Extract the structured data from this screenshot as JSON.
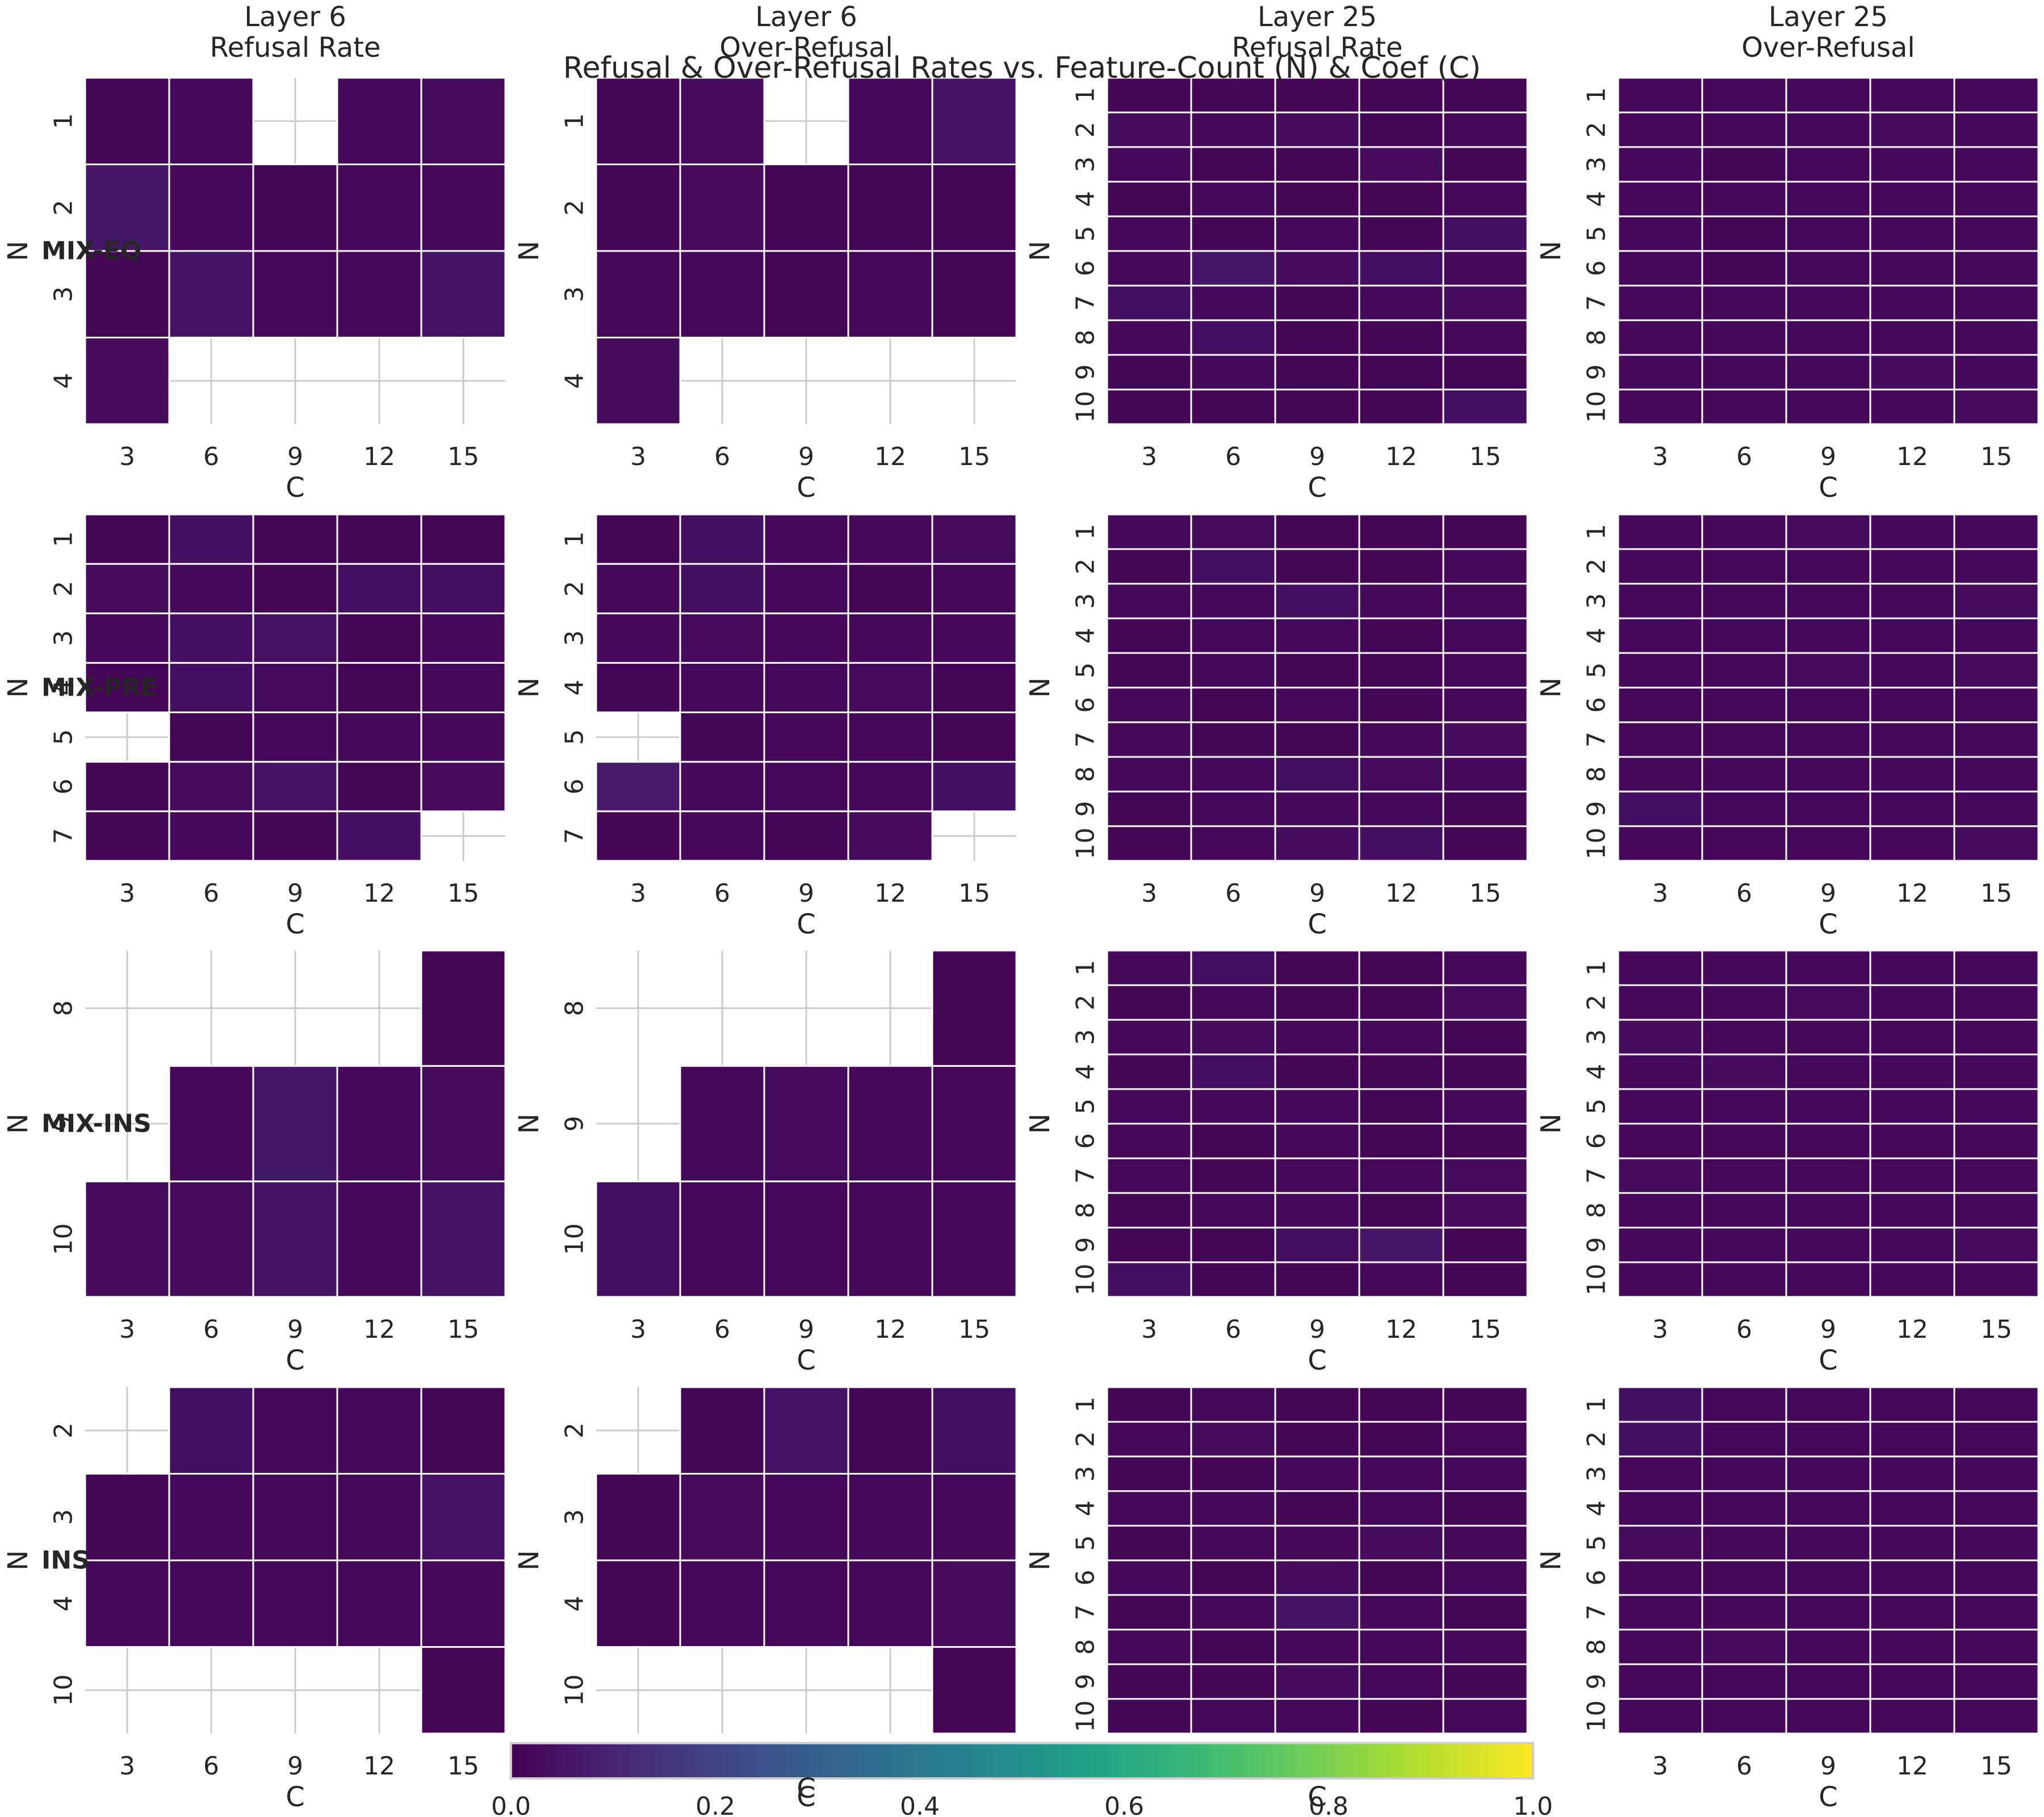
{
  "chart_data": {
    "type": "heatmap",
    "title": "Refusal & Over-Refusal Rates vs. Feature-Count (N) & Coef (C)",
    "column_titles": [
      [
        "Layer 6",
        "Refusal Rate"
      ],
      [
        "Layer 6",
        "Over-Refusal"
      ],
      [
        "Layer 25",
        "Refusal Rate"
      ],
      [
        "Layer 25",
        "Over-Refusal"
      ]
    ],
    "row_labels": [
      "MIX-EQ",
      "MIX-PRE",
      "MIX-INS",
      "INS"
    ],
    "xlabel": "C",
    "ylabel": "N",
    "x_categories": [
      "3",
      "6",
      "9",
      "12",
      "15"
    ],
    "colorbar": {
      "colormap": "viridis",
      "range": [
        0.0,
        1.0
      ],
      "ticks": [
        "0.0",
        "0.2",
        "0.4",
        "0.6",
        "0.8",
        "1.0"
      ],
      "label": "C"
    },
    "panels": [
      {
        "row": 0,
        "col": 0,
        "n": [
          "1",
          "2",
          "3",
          "4"
        ],
        "values": [
          [
            0.01,
            0.02,
            null,
            0.02,
            0.03
          ],
          [
            0.06,
            0.02,
            0.01,
            0.02,
            0.02
          ],
          [
            0.01,
            0.05,
            0.02,
            0.02,
            0.05
          ],
          [
            0.03,
            null,
            null,
            null,
            null
          ]
        ]
      },
      {
        "row": 0,
        "col": 1,
        "n": [
          "1",
          "2",
          "3",
          "4"
        ],
        "values": [
          [
            0.01,
            0.03,
            null,
            0.02,
            0.05
          ],
          [
            0.01,
            0.03,
            0.01,
            0.01,
            0.01
          ],
          [
            0.02,
            0.02,
            0.01,
            0.02,
            0.01
          ],
          [
            0.03,
            null,
            null,
            null,
            null
          ]
        ]
      },
      {
        "row": 0,
        "col": 2,
        "n": [
          "1",
          "2",
          "3",
          "4",
          "5",
          "6",
          "7",
          "8",
          "9",
          "10"
        ],
        "values": [
          [
            0.01,
            0.01,
            0.01,
            0.01,
            0.01
          ],
          [
            0.03,
            0.02,
            0.03,
            0.01,
            0.02
          ],
          [
            0.02,
            0.01,
            0.01,
            0.03,
            0.01
          ],
          [
            0.01,
            0.02,
            0.01,
            0.01,
            0.02
          ],
          [
            0.02,
            0.01,
            0.02,
            0.01,
            0.04
          ],
          [
            0.02,
            0.06,
            0.03,
            0.04,
            0.02
          ],
          [
            0.04,
            0.02,
            0.01,
            0.02,
            0.03
          ],
          [
            0.02,
            0.04,
            0.01,
            0.01,
            0.02
          ],
          [
            0.01,
            0.02,
            0.01,
            0.01,
            0.01
          ],
          [
            0.01,
            0.01,
            0.01,
            0.01,
            0.04
          ]
        ]
      },
      {
        "row": 0,
        "col": 3,
        "n": [
          "1",
          "2",
          "3",
          "4",
          "5",
          "6",
          "7",
          "8",
          "9",
          "10"
        ],
        "values": [
          [
            0.02,
            0.02,
            0.02,
            0.02,
            0.02
          ],
          [
            0.02,
            0.02,
            0.02,
            0.03,
            0.02
          ],
          [
            0.02,
            0.01,
            0.02,
            0.02,
            0.02
          ],
          [
            0.02,
            0.02,
            0.02,
            0.02,
            0.02
          ],
          [
            0.02,
            0.01,
            0.02,
            0.02,
            0.02
          ],
          [
            0.02,
            0.01,
            0.02,
            0.02,
            0.02
          ],
          [
            0.02,
            0.02,
            0.02,
            0.02,
            0.02
          ],
          [
            0.02,
            0.02,
            0.02,
            0.02,
            0.02
          ],
          [
            0.02,
            0.02,
            0.02,
            0.03,
            0.02
          ],
          [
            0.02,
            0.02,
            0.02,
            0.02,
            0.03
          ]
        ]
      },
      {
        "row": 1,
        "col": 0,
        "n": [
          "1",
          "2",
          "3",
          "4",
          "5",
          "6",
          "7"
        ],
        "values": [
          [
            0.01,
            0.04,
            0.01,
            0.01,
            0.01
          ],
          [
            0.03,
            0.02,
            0.01,
            0.04,
            0.04
          ],
          [
            0.02,
            0.04,
            0.05,
            0.01,
            0.02
          ],
          [
            0.01,
            0.04,
            0.03,
            0.01,
            0.02
          ],
          [
            null,
            0.01,
            0.02,
            0.02,
            0.02
          ],
          [
            0.01,
            0.03,
            0.05,
            0.01,
            0.03
          ],
          [
            0.01,
            0.02,
            0.01,
            0.04,
            null
          ]
        ]
      },
      {
        "row": 1,
        "col": 1,
        "n": [
          "1",
          "2",
          "3",
          "4",
          "5",
          "6",
          "7"
        ],
        "values": [
          [
            0.01,
            0.04,
            0.02,
            0.02,
            0.03
          ],
          [
            0.02,
            0.04,
            0.02,
            0.01,
            0.02
          ],
          [
            0.02,
            0.03,
            0.02,
            0.02,
            0.02
          ],
          [
            0.01,
            0.02,
            0.02,
            0.03,
            0.01
          ],
          [
            null,
            0.01,
            0.02,
            0.02,
            0.01
          ],
          [
            0.07,
            0.02,
            0.02,
            0.02,
            0.04
          ],
          [
            0.01,
            0.02,
            0.01,
            0.03,
            null
          ]
        ]
      },
      {
        "row": 1,
        "col": 2,
        "n": [
          "1",
          "2",
          "3",
          "4",
          "5",
          "6",
          "7",
          "8",
          "9",
          "10"
        ],
        "values": [
          [
            0.02,
            0.03,
            0.01,
            0.01,
            0.01
          ],
          [
            0.01,
            0.04,
            0.01,
            0.01,
            0.02
          ],
          [
            0.02,
            0.02,
            0.04,
            0.02,
            0.02
          ],
          [
            0.01,
            0.02,
            0.02,
            0.01,
            0.02
          ],
          [
            0.01,
            0.02,
            0.01,
            0.01,
            0.02
          ],
          [
            0.02,
            0.01,
            0.02,
            0.01,
            0.02
          ],
          [
            0.02,
            0.01,
            0.01,
            0.02,
            0.03
          ],
          [
            0.02,
            0.02,
            0.04,
            0.03,
            0.02
          ],
          [
            0.01,
            0.02,
            0.02,
            0.02,
            0.01
          ],
          [
            0.01,
            0.02,
            0.03,
            0.04,
            0.01
          ]
        ]
      },
      {
        "row": 1,
        "col": 3,
        "n": [
          "1",
          "2",
          "3",
          "4",
          "5",
          "6",
          "7",
          "8",
          "9",
          "10"
        ],
        "values": [
          [
            0.02,
            0.02,
            0.03,
            0.02,
            0.02
          ],
          [
            0.02,
            0.02,
            0.02,
            0.02,
            0.02
          ],
          [
            0.02,
            0.02,
            0.02,
            0.02,
            0.03
          ],
          [
            0.02,
            0.02,
            0.02,
            0.02,
            0.02
          ],
          [
            0.02,
            0.02,
            0.03,
            0.02,
            0.03
          ],
          [
            0.02,
            0.02,
            0.02,
            0.02,
            0.02
          ],
          [
            0.02,
            0.02,
            0.02,
            0.02,
            0.02
          ],
          [
            0.02,
            0.02,
            0.02,
            0.02,
            0.02
          ],
          [
            0.04,
            0.02,
            0.02,
            0.02,
            0.02
          ],
          [
            0.02,
            0.02,
            0.02,
            0.02,
            0.03
          ]
        ]
      },
      {
        "row": 2,
        "col": 0,
        "n": [
          "8",
          "9",
          "10"
        ],
        "values": [
          [
            null,
            null,
            null,
            null,
            0.01
          ],
          [
            null,
            0.02,
            0.06,
            0.02,
            0.03
          ],
          [
            0.03,
            0.03,
            0.05,
            0.02,
            0.05
          ]
        ]
      },
      {
        "row": 2,
        "col": 1,
        "n": [
          "8",
          "9",
          "10"
        ],
        "values": [
          [
            null,
            null,
            null,
            null,
            0.01
          ],
          [
            null,
            0.02,
            0.03,
            0.02,
            0.02
          ],
          [
            0.04,
            0.02,
            0.02,
            0.02,
            0.02
          ]
        ]
      },
      {
        "row": 2,
        "col": 2,
        "n": [
          "1",
          "2",
          "3",
          "4",
          "5",
          "6",
          "7",
          "8",
          "9",
          "10"
        ],
        "values": [
          [
            0.02,
            0.04,
            0.01,
            0.01,
            0.02
          ],
          [
            0.01,
            0.02,
            0.01,
            0.01,
            0.03
          ],
          [
            0.02,
            0.03,
            0.02,
            0.02,
            0.01
          ],
          [
            0.01,
            0.04,
            0.01,
            0.01,
            0.01
          ],
          [
            0.02,
            0.02,
            0.02,
            0.01,
            0.02
          ],
          [
            0.02,
            0.01,
            0.02,
            0.01,
            0.01
          ],
          [
            0.02,
            0.01,
            0.02,
            0.02,
            0.03
          ],
          [
            0.01,
            0.02,
            0.02,
            0.01,
            0.03
          ],
          [
            0.01,
            0.01,
            0.04,
            0.06,
            0.01
          ],
          [
            0.04,
            0.01,
            0.01,
            0.02,
            0.01
          ]
        ]
      },
      {
        "row": 2,
        "col": 3,
        "n": [
          "1",
          "2",
          "3",
          "4",
          "5",
          "6",
          "7",
          "8",
          "9",
          "10"
        ],
        "values": [
          [
            0.02,
            0.02,
            0.02,
            0.02,
            0.02
          ],
          [
            0.02,
            0.02,
            0.03,
            0.02,
            0.02
          ],
          [
            0.03,
            0.02,
            0.02,
            0.02,
            0.02
          ],
          [
            0.02,
            0.03,
            0.02,
            0.02,
            0.02
          ],
          [
            0.02,
            0.02,
            0.02,
            0.02,
            0.02
          ],
          [
            0.02,
            0.02,
            0.02,
            0.02,
            0.02
          ],
          [
            0.03,
            0.02,
            0.02,
            0.02,
            0.02
          ],
          [
            0.02,
            0.02,
            0.02,
            0.02,
            0.02
          ],
          [
            0.02,
            0.02,
            0.02,
            0.02,
            0.03
          ],
          [
            0.02,
            0.02,
            0.02,
            0.02,
            0.02
          ]
        ]
      },
      {
        "row": 3,
        "col": 0,
        "n": [
          "2",
          "3",
          "4",
          "10"
        ],
        "values": [
          [
            null,
            0.04,
            0.02,
            0.02,
            0.01
          ],
          [
            0.01,
            0.02,
            0.02,
            0.02,
            0.05
          ],
          [
            0.02,
            0.02,
            0.02,
            0.02,
            0.02
          ],
          [
            null,
            null,
            null,
            null,
            0.01
          ]
        ]
      },
      {
        "row": 3,
        "col": 1,
        "n": [
          "2",
          "3",
          "4",
          "10"
        ],
        "values": [
          [
            null,
            0.01,
            0.05,
            0.01,
            0.04
          ],
          [
            0.01,
            0.03,
            0.02,
            0.02,
            0.02
          ],
          [
            0.01,
            0.02,
            0.02,
            0.02,
            0.03
          ],
          [
            null,
            null,
            null,
            null,
            0.01
          ]
        ]
      },
      {
        "row": 3,
        "col": 2,
        "n": [
          "1",
          "2",
          "3",
          "4",
          "5",
          "6",
          "7",
          "8",
          "9",
          "10"
        ],
        "values": [
          [
            0.01,
            0.02,
            0.01,
            0.01,
            0.01
          ],
          [
            0.02,
            0.03,
            0.01,
            0.01,
            0.02
          ],
          [
            0.01,
            0.01,
            0.02,
            0.02,
            0.02
          ],
          [
            0.02,
            0.02,
            0.01,
            0.02,
            0.01
          ],
          [
            0.01,
            0.02,
            0.02,
            0.03,
            0.02
          ],
          [
            0.02,
            0.01,
            0.03,
            0.01,
            0.02
          ],
          [
            0.01,
            0.02,
            0.05,
            0.02,
            0.01
          ],
          [
            0.02,
            0.01,
            0.02,
            0.02,
            0.02
          ],
          [
            0.01,
            0.01,
            0.03,
            0.02,
            0.01
          ],
          [
            0.01,
            0.02,
            0.02,
            0.01,
            0.02
          ]
        ]
      },
      {
        "row": 3,
        "col": 3,
        "n": [
          "1",
          "2",
          "3",
          "4",
          "5",
          "6",
          "7",
          "8",
          "9",
          "10"
        ],
        "values": [
          [
            0.04,
            0.02,
            0.02,
            0.02,
            0.02
          ],
          [
            0.04,
            0.02,
            0.02,
            0.02,
            0.02
          ],
          [
            0.02,
            0.02,
            0.02,
            0.02,
            0.02
          ],
          [
            0.02,
            0.02,
            0.02,
            0.02,
            0.02
          ],
          [
            0.03,
            0.02,
            0.02,
            0.02,
            0.02
          ],
          [
            0.02,
            0.02,
            0.02,
            0.02,
            0.02
          ],
          [
            0.02,
            0.02,
            0.02,
            0.02,
            0.02
          ],
          [
            0.02,
            0.03,
            0.02,
            0.02,
            0.02
          ],
          [
            0.02,
            0.02,
            0.02,
            0.02,
            0.02
          ],
          [
            0.02,
            0.02,
            0.02,
            0.02,
            0.02
          ]
        ]
      }
    ]
  }
}
